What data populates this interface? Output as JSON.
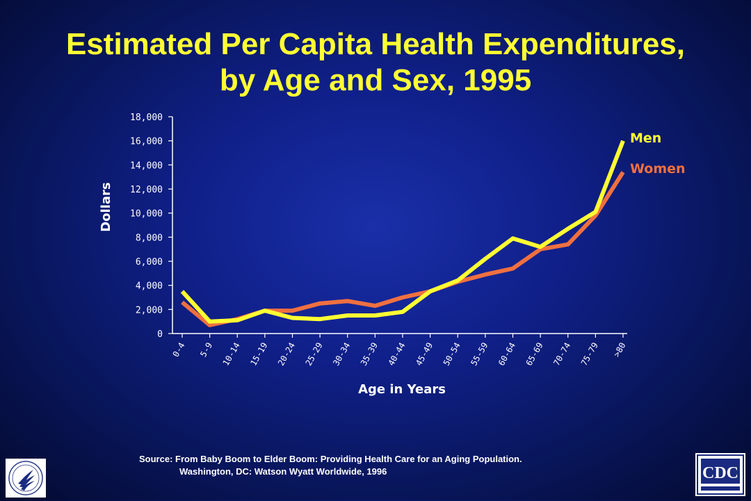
{
  "title_line1": "Estimated Per Capita Health Expenditures,",
  "title_line2": "by Age and Sex, 1995",
  "source_line1": "Source:  From Baby Boom to Elder Boom: Providing Health Care for an Aging Population.",
  "source_line2": "Washington, DC: Watson Wyatt Worldwide, 1996",
  "logos": {
    "left_icon": "hhs-eagle-seal-icon",
    "right_icon": "cdc-logo-icon",
    "right_text": "CDC"
  },
  "colors": {
    "title": "#ffff33",
    "men": "#ffff33",
    "women": "#f07040",
    "axis_text": "#ffffff"
  },
  "chart_data": {
    "type": "line",
    "xlabel": "Age in Years",
    "ylabel": "Dollars",
    "ylim": [
      0,
      18000
    ],
    "yticks": [
      0,
      2000,
      4000,
      6000,
      8000,
      10000,
      12000,
      14000,
      16000,
      18000
    ],
    "ytick_labels": [
      "0",
      "2,000",
      "4,000",
      "6,000",
      "8,000",
      "10,000",
      "12,000",
      "14,000",
      "16,000",
      "18,000"
    ],
    "categories": [
      "0-4",
      "5-9",
      "10-14",
      "15-19",
      "20-24",
      "25-29",
      "30-34",
      "35-39",
      "40-44",
      "45-49",
      "50-54",
      "55-59",
      "60-64",
      "65-69",
      "70-74",
      "75-79",
      ">80"
    ],
    "grid": false,
    "legend": "right",
    "series": [
      {
        "name": "Men",
        "color": "#ffff33",
        "values": [
          3500,
          1000,
          1100,
          1900,
          1300,
          1200,
          1500,
          1500,
          1800,
          3500,
          4400,
          6200,
          7900,
          7200,
          8700,
          10100,
          16000
        ]
      },
      {
        "name": "Women",
        "color": "#f07040",
        "values": [
          2600,
          700,
          1200,
          1900,
          1900,
          2500,
          2700,
          2300,
          3000,
          3500,
          4300,
          4900,
          5400,
          7000,
          7400,
          9800,
          13400
        ]
      }
    ]
  }
}
